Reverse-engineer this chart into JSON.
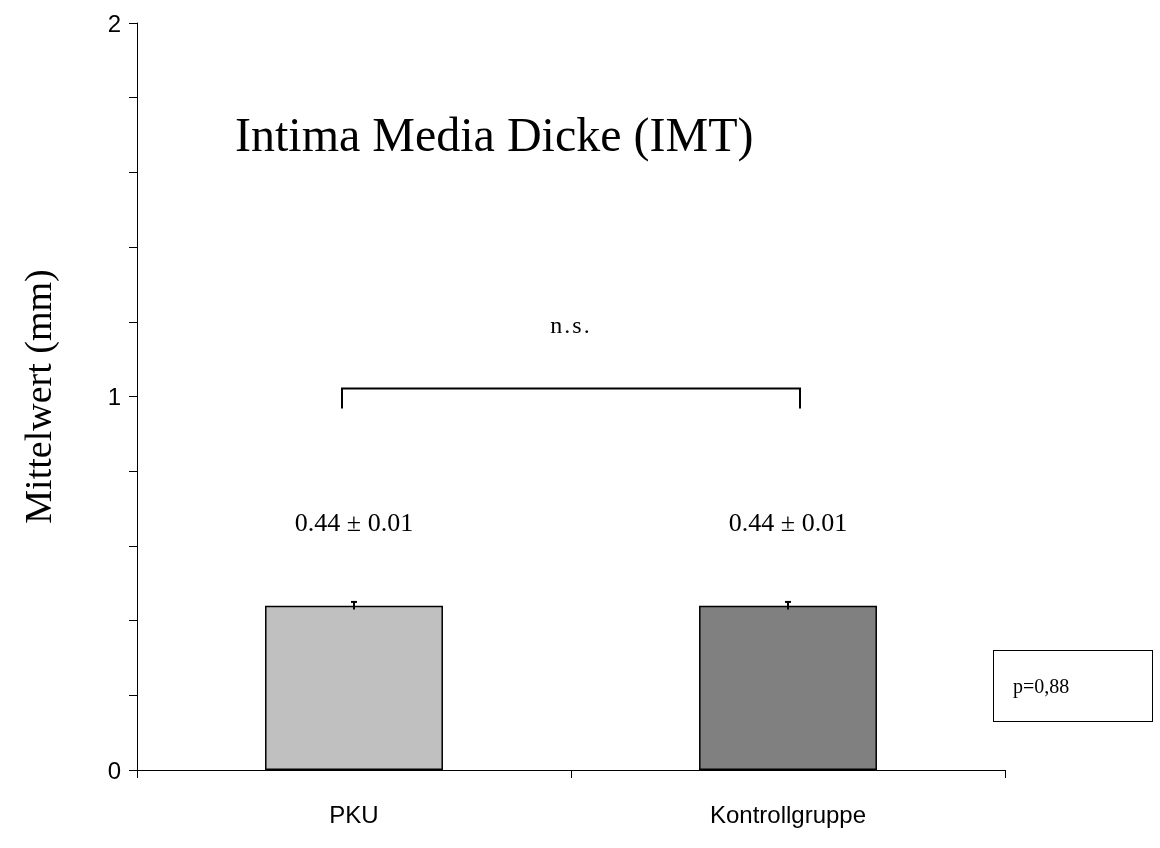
{
  "chart_data": {
    "type": "bar",
    "title": "Intima Media Dicke (IMT)",
    "ylabel": "Mittelwert (mm)",
    "categories": [
      "PKU",
      "Kontrollgruppe"
    ],
    "values": [
      0.44,
      0.44
    ],
    "colors": [
      "#c0c0c0",
      "#808080"
    ],
    "errors": [
      0.01,
      0.01
    ],
    "value_labels": [
      "0.44 ± 0.01",
      "0.44 ± 0.01"
    ],
    "ylim": [
      0,
      2
    ],
    "yticks": [
      0,
      {
        "value": 0.2,
        "label": null
      },
      {
        "value": 0.4,
        "label": null
      },
      {
        "value": 0.6,
        "label": null
      },
      {
        "value": 0.8,
        "label": null
      },
      1,
      {
        "value": 1.2,
        "label": null
      },
      {
        "value": 1.4,
        "label": null
      },
      {
        "value": 1.6,
        "label": null
      },
      {
        "value": 1.8,
        "label": null
      },
      2
    ],
    "annotations": [
      "n.s.",
      "p=0,88"
    ],
    "grid": false
  }
}
